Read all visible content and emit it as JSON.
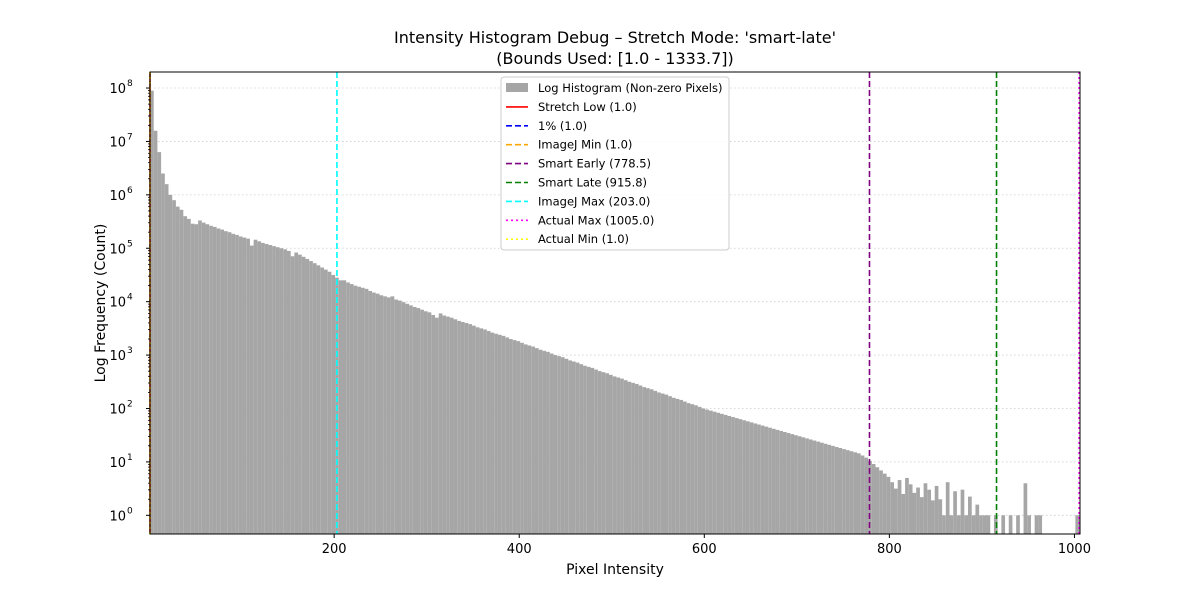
{
  "chart_data": {
    "type": "bar",
    "title_line1": "Intensity Histogram Debug – Stretch Mode: 'smart-late'",
    "title_line2": "(Bounds Used: [1.0 - 1333.7])",
    "xlabel": "Pixel Intensity",
    "ylabel": "Log Frequency (Count)",
    "xlim": [
      1,
      1006
    ],
    "ylim_log10": [
      -0.35,
      8.3
    ],
    "y_scale": "log",
    "grid": "y-dotted",
    "legend_placement": "top-center",
    "bar_color": "#a6a6a6",
    "x_ticks": [
      200,
      400,
      600,
      800,
      1000
    ],
    "x_tick_labels": [
      "200",
      "400",
      "600",
      "800",
      "1000"
    ],
    "y_ticks": [
      0,
      1,
      2,
      3,
      4,
      5,
      6,
      7,
      8
    ],
    "y_tick_labels": [
      {
        "base": "10",
        "exp": "0"
      },
      {
        "base": "10",
        "exp": "1"
      },
      {
        "base": "10",
        "exp": "2"
      },
      {
        "base": "10",
        "exp": "3"
      },
      {
        "base": "10",
        "exp": "4"
      },
      {
        "base": "10",
        "exp": "5"
      },
      {
        "base": "10",
        "exp": "6"
      },
      {
        "base": "10",
        "exp": "7"
      },
      {
        "base": "10",
        "exp": "8"
      }
    ],
    "bin_width": 4,
    "bins": [
      [
        1,
        7.95
      ],
      [
        5,
        7.2
      ],
      [
        9,
        6.8
      ],
      [
        13,
        6.4
      ],
      [
        17,
        6.2
      ],
      [
        21,
        6.0
      ],
      [
        25,
        5.9
      ],
      [
        29,
        5.78
      ],
      [
        33,
        5.72
      ],
      [
        37,
        5.6
      ],
      [
        41,
        5.55
      ],
      [
        45,
        5.46
      ],
      [
        49,
        5.45
      ],
      [
        53,
        5.52
      ],
      [
        57,
        5.48
      ],
      [
        61,
        5.45
      ],
      [
        65,
        5.42
      ],
      [
        69,
        5.4
      ],
      [
        73,
        5.37
      ],
      [
        77,
        5.35
      ],
      [
        81,
        5.32
      ],
      [
        85,
        5.3
      ],
      [
        89,
        5.27
      ],
      [
        93,
        5.25
      ],
      [
        97,
        5.22
      ],
      [
        101,
        5.2
      ],
      [
        105,
        5.18
      ],
      [
        109,
        5.05
      ],
      [
        113,
        5.16
      ],
      [
        117,
        5.13
      ],
      [
        121,
        5.1
      ],
      [
        125,
        5.08
      ],
      [
        129,
        5.06
      ],
      [
        133,
        5.04
      ],
      [
        137,
        5.02
      ],
      [
        141,
        5.0
      ],
      [
        145,
        4.98
      ],
      [
        149,
        4.95
      ],
      [
        153,
        4.85
      ],
      [
        157,
        4.92
      ],
      [
        161,
        4.88
      ],
      [
        165,
        4.84
      ],
      [
        169,
        4.8
      ],
      [
        173,
        4.76
      ],
      [
        177,
        4.72
      ],
      [
        181,
        4.68
      ],
      [
        185,
        4.64
      ],
      [
        189,
        4.6
      ],
      [
        193,
        4.56
      ],
      [
        197,
        4.5
      ],
      [
        201,
        4.45
      ],
      [
        205,
        4.4
      ],
      [
        209,
        4.4
      ],
      [
        213,
        4.36
      ],
      [
        217,
        4.33
      ],
      [
        221,
        4.3
      ],
      [
        225,
        4.28
      ],
      [
        229,
        4.26
      ],
      [
        233,
        4.24
      ],
      [
        237,
        4.2
      ],
      [
        241,
        4.17
      ],
      [
        245,
        4.15
      ],
      [
        249,
        4.12
      ],
      [
        253,
        4.1
      ],
      [
        257,
        4.08
      ],
      [
        261,
        4.1
      ],
      [
        265,
        4.04
      ],
      [
        269,
        4.02
      ],
      [
        273,
        3.99
      ],
      [
        277,
        3.96
      ],
      [
        281,
        3.93
      ],
      [
        285,
        3.9
      ],
      [
        289,
        3.88
      ],
      [
        293,
        3.85
      ],
      [
        297,
        3.82
      ],
      [
        301,
        3.8
      ],
      [
        305,
        3.75
      ],
      [
        309,
        3.7
      ],
      [
        313,
        3.78
      ],
      [
        317,
        3.74
      ],
      [
        321,
        3.72
      ],
      [
        325,
        3.7
      ],
      [
        329,
        3.67
      ],
      [
        333,
        3.64
      ],
      [
        337,
        3.62
      ],
      [
        341,
        3.6
      ],
      [
        345,
        3.58
      ],
      [
        349,
        3.55
      ],
      [
        353,
        3.52
      ],
      [
        357,
        3.5
      ],
      [
        361,
        3.48
      ],
      [
        365,
        3.45
      ],
      [
        369,
        3.42
      ],
      [
        373,
        3.4
      ],
      [
        377,
        3.38
      ],
      [
        381,
        3.36
      ],
      [
        385,
        3.33
      ],
      [
        389,
        3.3
      ],
      [
        393,
        3.28
      ],
      [
        397,
        3.26
      ],
      [
        401,
        3.23
      ],
      [
        405,
        3.2
      ],
      [
        409,
        3.18
      ],
      [
        413,
        3.16
      ],
      [
        417,
        3.13
      ],
      [
        421,
        3.1
      ],
      [
        425,
        3.08
      ],
      [
        429,
        3.06
      ],
      [
        433,
        3.03
      ],
      [
        437,
        3.0
      ],
      [
        441,
        2.98
      ],
      [
        445,
        2.96
      ],
      [
        449,
        2.93
      ],
      [
        453,
        2.9
      ],
      [
        457,
        2.88
      ],
      [
        461,
        2.86
      ],
      [
        465,
        2.83
      ],
      [
        469,
        2.8
      ],
      [
        473,
        2.78
      ],
      [
        477,
        2.76
      ],
      [
        481,
        2.73
      ],
      [
        485,
        2.7
      ],
      [
        489,
        2.68
      ],
      [
        493,
        2.66
      ],
      [
        497,
        2.63
      ],
      [
        501,
        2.6
      ],
      [
        505,
        2.58
      ],
      [
        509,
        2.56
      ],
      [
        513,
        2.53
      ],
      [
        517,
        2.5
      ],
      [
        521,
        2.48
      ],
      [
        525,
        2.46
      ],
      [
        529,
        2.43
      ],
      [
        533,
        2.4
      ],
      [
        537,
        2.38
      ],
      [
        541,
        2.36
      ],
      [
        545,
        2.33
      ],
      [
        549,
        2.3
      ],
      [
        553,
        2.28
      ],
      [
        557,
        2.26
      ],
      [
        561,
        2.23
      ],
      [
        565,
        2.2
      ],
      [
        569,
        2.18
      ],
      [
        573,
        2.16
      ],
      [
        577,
        2.13
      ],
      [
        581,
        2.1
      ],
      [
        585,
        2.08
      ],
      [
        589,
        2.06
      ],
      [
        593,
        2.03
      ],
      [
        597,
        2.0
      ],
      [
        601,
        1.98
      ],
      [
        605,
        1.96
      ],
      [
        609,
        1.94
      ],
      [
        613,
        1.92
      ],
      [
        617,
        1.9
      ],
      [
        621,
        1.88
      ],
      [
        625,
        1.86
      ],
      [
        629,
        1.84
      ],
      [
        633,
        1.82
      ],
      [
        637,
        1.8
      ],
      [
        641,
        1.78
      ],
      [
        645,
        1.76
      ],
      [
        649,
        1.74
      ],
      [
        653,
        1.72
      ],
      [
        657,
        1.7
      ],
      [
        661,
        1.68
      ],
      [
        665,
        1.66
      ],
      [
        669,
        1.64
      ],
      [
        673,
        1.62
      ],
      [
        677,
        1.6
      ],
      [
        681,
        1.58
      ],
      [
        685,
        1.56
      ],
      [
        689,
        1.54
      ],
      [
        693,
        1.52
      ],
      [
        697,
        1.5
      ],
      [
        701,
        1.48
      ],
      [
        705,
        1.46
      ],
      [
        709,
        1.44
      ],
      [
        713,
        1.42
      ],
      [
        717,
        1.4
      ],
      [
        721,
        1.38
      ],
      [
        725,
        1.36
      ],
      [
        729,
        1.34
      ],
      [
        733,
        1.32
      ],
      [
        737,
        1.3
      ],
      [
        741,
        1.28
      ],
      [
        745,
        1.26
      ],
      [
        749,
        1.24
      ],
      [
        753,
        1.22
      ],
      [
        757,
        1.2
      ],
      [
        761,
        1.18
      ],
      [
        765,
        1.16
      ],
      [
        769,
        1.12
      ],
      [
        773,
        1.08
      ],
      [
        777,
        1.02
      ],
      [
        781,
        0.96
      ],
      [
        785,
        0.9
      ],
      [
        789,
        0.84
      ],
      [
        793,
        0.78
      ],
      [
        797,
        0.72
      ],
      [
        801,
        0.62
      ],
      [
        805,
        0.5
      ],
      [
        809,
        0.66
      ],
      [
        813,
        0.4
      ],
      [
        817,
        0.7
      ],
      [
        821,
        0.58
      ],
      [
        825,
        0.42
      ],
      [
        829,
        0.52
      ],
      [
        833,
        0.34
      ],
      [
        837,
        0.6
      ],
      [
        841,
        0.48
      ],
      [
        845,
        0.28
      ],
      [
        849,
        0.55
      ],
      [
        853,
        0.3
      ],
      [
        857,
        0.0
      ],
      [
        861,
        0.62
      ],
      [
        865,
        0.0
      ],
      [
        869,
        0.45
      ],
      [
        873,
        0.0
      ],
      [
        877,
        0.48
      ],
      [
        881,
        0.0
      ],
      [
        885,
        0.35
      ],
      [
        889,
        0.0
      ],
      [
        893,
        0.2
      ],
      [
        897,
        0.0
      ],
      [
        901,
        0.0
      ],
      [
        905,
        0.0
      ],
      [
        913,
        0.0
      ],
      [
        921,
        0.0
      ],
      [
        929,
        0.0
      ],
      [
        937,
        0.0
      ],
      [
        945,
        0.6
      ],
      [
        949,
        0.0
      ],
      [
        957,
        0.0
      ],
      [
        961,
        0.0
      ],
      [
        1001,
        0.0
      ],
      [
        1005,
        0.0
      ]
    ],
    "vlines": [
      {
        "label": "Stretch Low (1.0)",
        "x": 1.0,
        "color": "#ff0000",
        "style": "solid"
      },
      {
        "label": "1% (1.0)",
        "x": 1.0,
        "color": "#0000ff",
        "style": "dashed"
      },
      {
        "label": "ImageJ Min (1.0)",
        "x": 1.0,
        "color": "#ffa500",
        "style": "dashed"
      },
      {
        "label": "Smart Early (778.5)",
        "x": 778.5,
        "color": "#800080",
        "style": "dashed"
      },
      {
        "label": "Smart Late (915.8)",
        "x": 915.8,
        "color": "#008000",
        "style": "dashed"
      },
      {
        "label": "ImageJ Max (203.0)",
        "x": 203.0,
        "color": "#00ffff",
        "style": "dashed"
      },
      {
        "label": "Actual Max (1005.0)",
        "x": 1005.0,
        "color": "#ff00ff",
        "style": "dotted"
      },
      {
        "label": "Actual Min (1.0)",
        "x": 1.0,
        "color": "#ffff00",
        "style": "dotted"
      }
    ],
    "legend": {
      "histogram_label": "Log Histogram (Non-zero Pixels)"
    }
  }
}
